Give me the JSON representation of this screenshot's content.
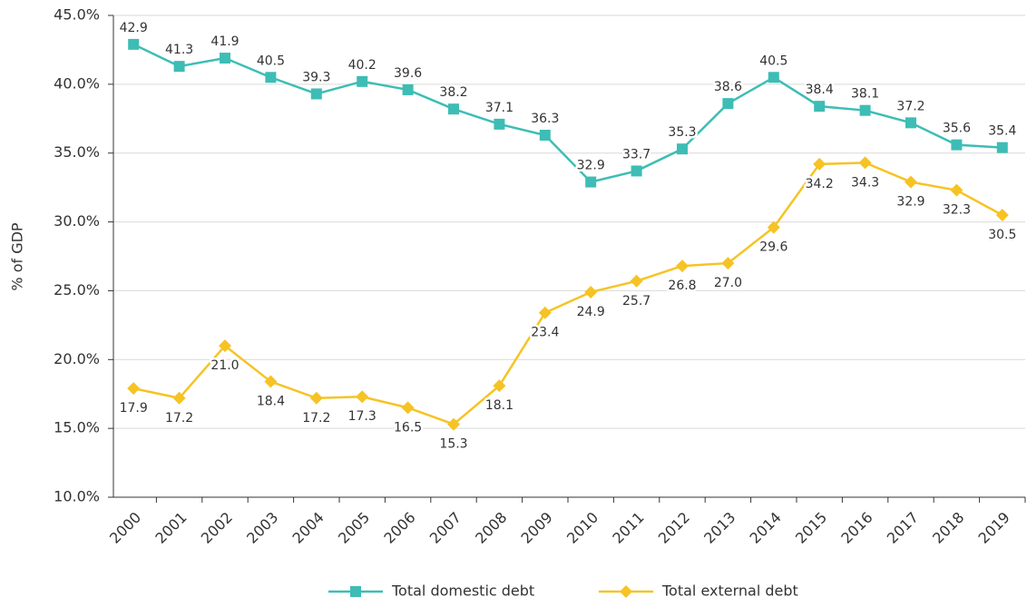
{
  "chart_data": {
    "type": "line",
    "y_label": "% of GDP",
    "categories": [
      "2000",
      "2001",
      "2002",
      "2003",
      "2004",
      "2005",
      "2006",
      "2007",
      "2008",
      "2009",
      "2010",
      "2011",
      "2012",
      "2013",
      "2014",
      "2015",
      "2016",
      "2017",
      "2018",
      "2019"
    ],
    "series": [
      {
        "name": "Total domestic debt",
        "color": "#3dbdb5",
        "marker": "square",
        "values": [
          42.9,
          41.3,
          41.9,
          40.5,
          39.3,
          40.2,
          39.6,
          38.2,
          37.1,
          36.3,
          32.9,
          33.7,
          35.3,
          38.6,
          40.5,
          38.4,
          38.1,
          37.2,
          35.6,
          35.4
        ],
        "value_labels": [
          "42.9",
          "41.3",
          "41.9",
          "40.5",
          "39.3",
          "40.2",
          "39.6",
          "38.2",
          "37.1",
          "36.3",
          "32.9",
          "33.7",
          "35.3",
          "38.6",
          "40.5",
          "38.4",
          "38.1",
          "37.2",
          "35.6",
          "35.4"
        ]
      },
      {
        "name": "Total external debt",
        "color": "#f6c324",
        "marker": "diamond",
        "values": [
          17.9,
          17.2,
          21.0,
          18.4,
          17.2,
          17.3,
          16.5,
          15.3,
          18.1,
          23.4,
          24.9,
          25.7,
          26.8,
          27.0,
          29.6,
          34.2,
          34.3,
          32.9,
          32.3,
          30.5
        ],
        "value_labels": [
          "17.9",
          "17.2",
          "21.0",
          "18.4",
          "17.2",
          "17.3",
          "16.5",
          "15.3",
          "18.1",
          "23.4",
          "24.9",
          "25.7",
          "26.8",
          "27.0",
          "29.6",
          "34.2",
          "34.3",
          "32.9",
          "32.3",
          "30.5"
        ]
      }
    ],
    "ylim": [
      10,
      45
    ],
    "yticks": [
      {
        "value": 10,
        "label": "10.0%"
      },
      {
        "value": 15,
        "label": "15.0%"
      },
      {
        "value": 20,
        "label": "20.0%"
      },
      {
        "value": 25,
        "label": "25.0%"
      },
      {
        "value": 30,
        "label": "30.0%"
      },
      {
        "value": 35,
        "label": "35.0%"
      },
      {
        "value": 40,
        "label": "40.0%"
      },
      {
        "value": 45,
        "label": "45.0%"
      }
    ],
    "grid": true,
    "legend": "bottom"
  }
}
